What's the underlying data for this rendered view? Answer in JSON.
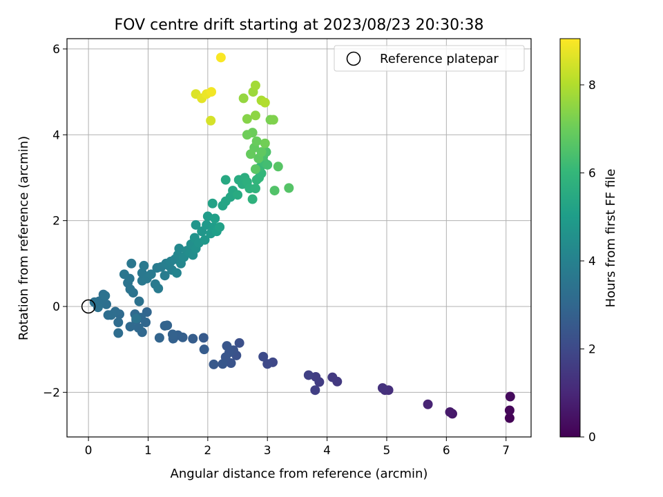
{
  "chart_data": {
    "type": "scatter",
    "title": "FOV centre drift starting at 2023/08/23 20:30:38",
    "xlabel": "Angular distance from reference (arcmin)",
    "ylabel": "Rotation from reference (arcmin)",
    "xlim": [
      -0.36,
      7.42
    ],
    "ylim": [
      -3.04,
      6.24
    ],
    "xticks": [
      0,
      1,
      2,
      3,
      4,
      5,
      6,
      7
    ],
    "yticks": [
      -2,
      0,
      2,
      4,
      6
    ],
    "xtick_labels": [
      "0",
      "1",
      "2",
      "3",
      "4",
      "5",
      "6",
      "7"
    ],
    "ytick_labels": [
      "−2",
      "0",
      "2",
      "4",
      "6"
    ],
    "grid": true,
    "colormap": "viridis",
    "colorbar": {
      "label": "Hours from first FF file",
      "range": [
        0,
        9.05
      ],
      "ticks": [
        0,
        2,
        4,
        6,
        8
      ],
      "tick_labels": [
        "0",
        "2",
        "4",
        "6",
        "8"
      ]
    },
    "legend": {
      "position": "top-right",
      "entries": [
        "Reference platepar"
      ]
    },
    "reference_point": {
      "x": 0,
      "y": 0
    },
    "points": [
      {
        "x": 7.06,
        "y": -2.6,
        "c": 0.05
      },
      {
        "x": 7.06,
        "y": -2.42,
        "c": 0.15
      },
      {
        "x": 7.07,
        "y": -2.1,
        "c": 0.25
      },
      {
        "x": 6.1,
        "y": -2.5,
        "c": 0.6
      },
      {
        "x": 6.06,
        "y": -2.46,
        "c": 0.65
      },
      {
        "x": 5.69,
        "y": -2.28,
        "c": 0.9
      },
      {
        "x": 5.03,
        "y": -1.95,
        "c": 1.2
      },
      {
        "x": 4.97,
        "y": -1.95,
        "c": 1.25
      },
      {
        "x": 4.93,
        "y": -1.9,
        "c": 1.3
      },
      {
        "x": 4.17,
        "y": -1.75,
        "c": 1.5
      },
      {
        "x": 4.09,
        "y": -1.65,
        "c": 1.55
      },
      {
        "x": 3.87,
        "y": -1.76,
        "c": 1.6
      },
      {
        "x": 3.81,
        "y": -1.64,
        "c": 1.65
      },
      {
        "x": 3.8,
        "y": -1.95,
        "c": 1.7
      },
      {
        "x": 3.69,
        "y": -1.6,
        "c": 1.75
      },
      {
        "x": 3.09,
        "y": -1.3,
        "c": 1.95
      },
      {
        "x": 3.0,
        "y": -1.34,
        "c": 2.0
      },
      {
        "x": 2.93,
        "y": -1.17,
        "c": 2.05
      },
      {
        "x": 2.53,
        "y": -0.85,
        "c": 2.2
      },
      {
        "x": 2.48,
        "y": -1.14,
        "c": 2.25
      },
      {
        "x": 2.43,
        "y": -1.02,
        "c": 2.3
      },
      {
        "x": 2.39,
        "y": -1.32,
        "c": 2.35
      },
      {
        "x": 2.36,
        "y": -1.07,
        "c": 2.38
      },
      {
        "x": 2.32,
        "y": -0.92,
        "c": 2.4
      },
      {
        "x": 2.3,
        "y": -1.18,
        "c": 2.42
      },
      {
        "x": 2.25,
        "y": -1.34,
        "c": 2.45
      },
      {
        "x": 2.1,
        "y": -1.35,
        "c": 2.5
      },
      {
        "x": 1.93,
        "y": -0.73,
        "c": 2.55
      },
      {
        "x": 1.94,
        "y": -1.0,
        "c": 2.6
      },
      {
        "x": 1.75,
        "y": -0.75,
        "c": 2.65
      },
      {
        "x": 1.58,
        "y": -0.72,
        "c": 2.7
      },
      {
        "x": 1.5,
        "y": -0.67,
        "c": 2.75
      },
      {
        "x": 1.42,
        "y": -0.75,
        "c": 2.78
      },
      {
        "x": 1.41,
        "y": -0.65,
        "c": 2.8
      },
      {
        "x": 1.32,
        "y": -0.44,
        "c": 2.85
      },
      {
        "x": 1.28,
        "y": -0.45,
        "c": 2.88
      },
      {
        "x": 1.19,
        "y": -0.73,
        "c": 2.9
      },
      {
        "x": 0.98,
        "y": -0.13,
        "c": 2.95
      },
      {
        "x": 0.96,
        "y": -0.37,
        "c": 2.98
      },
      {
        "x": 0.9,
        "y": -0.6,
        "c": 3.0
      },
      {
        "x": 0.88,
        "y": -0.26,
        "c": 3.02
      },
      {
        "x": 0.84,
        "y": -0.5,
        "c": 3.04
      },
      {
        "x": 0.8,
        "y": -0.32,
        "c": 3.06
      },
      {
        "x": 0.78,
        "y": -0.18,
        "c": 3.08
      },
      {
        "x": 0.7,
        "y": -0.47,
        "c": 3.1
      },
      {
        "x": 0.52,
        "y": -0.18,
        "c": 3.15
      },
      {
        "x": 0.5,
        "y": -0.37,
        "c": 3.18
      },
      {
        "x": 0.5,
        "y": -0.62,
        "c": 3.2
      },
      {
        "x": 0.45,
        "y": -0.12,
        "c": 3.22
      },
      {
        "x": 0.38,
        "y": -0.2,
        "c": 3.24
      },
      {
        "x": 0.33,
        "y": -0.2,
        "c": 3.26
      },
      {
        "x": 0.3,
        "y": 0.05,
        "c": 3.3
      },
      {
        "x": 0.25,
        "y": 0.28,
        "c": 3.32
      },
      {
        "x": 0.18,
        "y": 0.12,
        "c": 3.34
      },
      {
        "x": 0.16,
        "y": -0.02,
        "c": 3.36
      },
      {
        "x": 0.1,
        "y": 0.1,
        "c": 3.38
      },
      {
        "x": 0.28,
        "y": 0.25,
        "c": 3.4
      },
      {
        "x": 0.85,
        "y": 0.12,
        "c": 3.42
      },
      {
        "x": 0.8,
        "y": -0.28,
        "c": 3.44
      },
      {
        "x": 0.75,
        "y": 0.32,
        "c": 3.46
      },
      {
        "x": 0.7,
        "y": 0.4,
        "c": 3.48
      },
      {
        "x": 0.66,
        "y": 0.55,
        "c": 3.5
      },
      {
        "x": 0.69,
        "y": 0.65,
        "c": 3.52
      },
      {
        "x": 0.6,
        "y": 0.75,
        "c": 3.55
      },
      {
        "x": 0.72,
        "y": 1.0,
        "c": 3.6
      },
      {
        "x": 0.9,
        "y": 0.6,
        "c": 3.62
      },
      {
        "x": 0.9,
        "y": 0.78,
        "c": 3.64
      },
      {
        "x": 0.93,
        "y": 0.95,
        "c": 3.66
      },
      {
        "x": 0.98,
        "y": 0.65,
        "c": 3.68
      },
      {
        "x": 1.05,
        "y": 0.75,
        "c": 3.7
      },
      {
        "x": 1.12,
        "y": 0.52,
        "c": 3.72
      },
      {
        "x": 1.17,
        "y": 0.42,
        "c": 3.74
      },
      {
        "x": 1.15,
        "y": 0.9,
        "c": 3.76
      },
      {
        "x": 1.22,
        "y": 0.92,
        "c": 3.78
      },
      {
        "x": 1.28,
        "y": 0.72,
        "c": 3.8
      },
      {
        "x": 1.3,
        "y": 1.0,
        "c": 3.85
      },
      {
        "x": 1.35,
        "y": 0.95,
        "c": 3.9
      },
      {
        "x": 1.4,
        "y": 0.85,
        "c": 3.95
      },
      {
        "x": 1.38,
        "y": 1.05,
        "c": 4.0
      },
      {
        "x": 1.45,
        "y": 1.1,
        "c": 4.05
      },
      {
        "x": 1.48,
        "y": 0.78,
        "c": 4.1
      },
      {
        "x": 1.5,
        "y": 1.2,
        "c": 4.15
      },
      {
        "x": 1.55,
        "y": 1.0,
        "c": 4.2
      },
      {
        "x": 1.52,
        "y": 1.35,
        "c": 4.25
      },
      {
        "x": 1.6,
        "y": 1.15,
        "c": 4.3
      },
      {
        "x": 1.65,
        "y": 1.3,
        "c": 4.35
      },
      {
        "x": 1.7,
        "y": 1.25,
        "c": 4.4
      },
      {
        "x": 1.75,
        "y": 1.2,
        "c": 4.45
      },
      {
        "x": 1.72,
        "y": 1.45,
        "c": 4.5
      },
      {
        "x": 1.8,
        "y": 1.35,
        "c": 4.55
      },
      {
        "x": 1.78,
        "y": 1.6,
        "c": 4.6
      },
      {
        "x": 1.85,
        "y": 1.48,
        "c": 4.65
      },
      {
        "x": 1.8,
        "y": 1.9,
        "c": 4.7
      },
      {
        "x": 1.9,
        "y": 1.75,
        "c": 4.75
      },
      {
        "x": 1.95,
        "y": 1.55,
        "c": 4.8
      },
      {
        "x": 1.98,
        "y": 1.9,
        "c": 4.85
      },
      {
        "x": 2.05,
        "y": 1.7,
        "c": 4.9
      },
      {
        "x": 2.0,
        "y": 2.1,
        "c": 4.95
      },
      {
        "x": 2.1,
        "y": 1.85,
        "c": 5.0
      },
      {
        "x": 2.15,
        "y": 1.75,
        "c": 5.05
      },
      {
        "x": 2.12,
        "y": 2.05,
        "c": 5.1
      },
      {
        "x": 2.2,
        "y": 1.85,
        "c": 5.15
      },
      {
        "x": 2.08,
        "y": 2.4,
        "c": 5.2
      },
      {
        "x": 2.25,
        "y": 2.35,
        "c": 5.25
      },
      {
        "x": 2.3,
        "y": 2.45,
        "c": 5.3
      },
      {
        "x": 2.38,
        "y": 2.55,
        "c": 5.35
      },
      {
        "x": 2.42,
        "y": 2.7,
        "c": 5.4
      },
      {
        "x": 2.3,
        "y": 2.95,
        "c": 5.45
      },
      {
        "x": 2.5,
        "y": 2.6,
        "c": 5.5
      },
      {
        "x": 2.52,
        "y": 2.95,
        "c": 5.55
      },
      {
        "x": 2.58,
        "y": 2.85,
        "c": 5.6
      },
      {
        "x": 2.62,
        "y": 3.0,
        "c": 5.65
      },
      {
        "x": 2.66,
        "y": 2.9,
        "c": 5.7
      },
      {
        "x": 2.7,
        "y": 2.75,
        "c": 5.75
      },
      {
        "x": 2.75,
        "y": 2.5,
        "c": 5.8
      },
      {
        "x": 2.8,
        "y": 2.75,
        "c": 5.85
      },
      {
        "x": 2.82,
        "y": 2.95,
        "c": 5.9
      },
      {
        "x": 2.86,
        "y": 3.0,
        "c": 5.95
      },
      {
        "x": 2.9,
        "y": 3.1,
        "c": 6.0
      },
      {
        "x": 2.88,
        "y": 3.25,
        "c": 6.1
      },
      {
        "x": 2.95,
        "y": 3.35,
        "c": 6.2
      },
      {
        "x": 3.0,
        "y": 3.3,
        "c": 6.3
      },
      {
        "x": 2.93,
        "y": 3.5,
        "c": 6.4
      },
      {
        "x": 2.98,
        "y": 3.6,
        "c": 6.5
      },
      {
        "x": 3.12,
        "y": 2.7,
        "c": 6.55
      },
      {
        "x": 3.36,
        "y": 2.76,
        "c": 6.6
      },
      {
        "x": 3.18,
        "y": 3.26,
        "c": 6.65
      },
      {
        "x": 2.8,
        "y": 3.2,
        "c": 6.7
      },
      {
        "x": 2.85,
        "y": 3.45,
        "c": 6.75
      },
      {
        "x": 2.9,
        "y": 3.6,
        "c": 6.8
      },
      {
        "x": 2.78,
        "y": 3.7,
        "c": 6.85
      },
      {
        "x": 2.72,
        "y": 3.55,
        "c": 6.9
      },
      {
        "x": 2.82,
        "y": 3.85,
        "c": 6.95
      },
      {
        "x": 2.75,
        "y": 4.05,
        "c": 7.0
      },
      {
        "x": 2.66,
        "y": 4.0,
        "c": 7.05
      },
      {
        "x": 2.96,
        "y": 3.8,
        "c": 7.1
      },
      {
        "x": 3.05,
        "y": 4.35,
        "c": 7.2
      },
      {
        "x": 3.1,
        "y": 4.35,
        "c": 7.3
      },
      {
        "x": 2.66,
        "y": 4.37,
        "c": 7.4
      },
      {
        "x": 2.8,
        "y": 4.45,
        "c": 7.5
      },
      {
        "x": 2.6,
        "y": 4.85,
        "c": 7.6
      },
      {
        "x": 2.76,
        "y": 5.0,
        "c": 7.7
      },
      {
        "x": 2.8,
        "y": 5.15,
        "c": 7.8
      },
      {
        "x": 2.9,
        "y": 4.8,
        "c": 7.9
      },
      {
        "x": 2.96,
        "y": 4.75,
        "c": 8.0
      },
      {
        "x": 2.05,
        "y": 4.33,
        "c": 8.5
      },
      {
        "x": 1.8,
        "y": 4.95,
        "c": 8.6
      },
      {
        "x": 1.9,
        "y": 4.85,
        "c": 8.7
      },
      {
        "x": 1.98,
        "y": 4.95,
        "c": 8.8
      },
      {
        "x": 2.06,
        "y": 5.0,
        "c": 8.9
      },
      {
        "x": 2.22,
        "y": 5.8,
        "c": 9.0
      }
    ]
  }
}
